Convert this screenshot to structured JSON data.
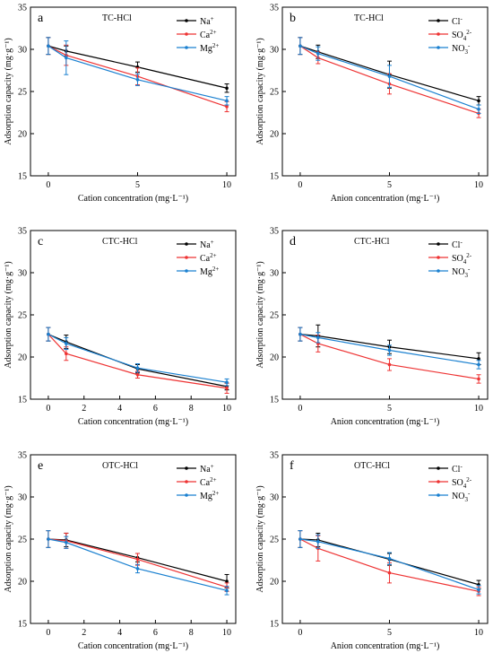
{
  "colors": {
    "black": "#000000",
    "red": "#ee3333",
    "blue": "#1a80d0"
  },
  "chart_data": [
    {
      "type": "line",
      "panel_label": "a",
      "title": "TC-HCl",
      "xlabel": "Cation concentration (mg·L⁻¹)",
      "ylabel": "Adsorption capacity (mg·g⁻¹)",
      "x": [
        0,
        1,
        5,
        10
      ],
      "xticks": [
        0,
        5,
        10
      ],
      "xlim": [
        -1,
        10.5
      ],
      "ylim": [
        15,
        35
      ],
      "yticks": [
        15,
        20,
        25,
        30,
        35
      ],
      "legend_position": "top-right",
      "series": [
        {
          "name": "Na+",
          "color": "#000000",
          "values": [
            30.4,
            29.8,
            27.9,
            25.4
          ],
          "errors": [
            1.0,
            0.6,
            0.6,
            0.5
          ]
        },
        {
          "name": "Ca2+",
          "color": "#ee3333",
          "values": [
            30.4,
            29.3,
            26.8,
            23.2
          ],
          "errors": [
            1.0,
            1.2,
            1.0,
            0.6
          ]
        },
        {
          "name": "Mg2+",
          "color": "#1a80d0",
          "values": [
            30.4,
            29.0,
            26.4,
            23.9
          ],
          "errors": [
            1.0,
            2.0,
            0.7,
            0.5
          ]
        }
      ]
    },
    {
      "type": "line",
      "panel_label": "b",
      "title": "TC-HCl",
      "xlabel": "Anion concentration (mg·L⁻¹)",
      "ylabel": "Adsorption capacity (mg·g⁻¹)",
      "x": [
        0,
        1,
        5,
        10
      ],
      "xticks": [
        0,
        5,
        10
      ],
      "xlim": [
        -1,
        10.5
      ],
      "ylim": [
        15,
        35
      ],
      "yticks": [
        15,
        20,
        25,
        30,
        35
      ],
      "legend_position": "top-right",
      "series": [
        {
          "name": "Cl-",
          "color": "#000000",
          "values": [
            30.4,
            29.7,
            27.0,
            23.9
          ],
          "errors": [
            1.0,
            0.8,
            1.6,
            0.5
          ]
        },
        {
          "name": "SO42-",
          "color": "#ee3333",
          "values": [
            30.4,
            29.0,
            25.9,
            22.4
          ],
          "errors": [
            1.0,
            0.7,
            1.2,
            0.5
          ]
        },
        {
          "name": "NO3-",
          "color": "#1a80d0",
          "values": [
            30.4,
            29.5,
            26.8,
            22.9
          ],
          "errors": [
            1.0,
            0.8,
            1.3,
            0.5
          ]
        }
      ]
    },
    {
      "type": "line",
      "panel_label": "c",
      "title": "CTC-HCl",
      "xlabel": "Cation concentration (mg·L⁻¹)",
      "ylabel": "Adsorption capacity (mg·g⁻¹)",
      "x": [
        0,
        1,
        5,
        10
      ],
      "xticks": [
        0,
        2,
        4,
        6,
        8,
        10
      ],
      "xlim": [
        -1,
        10.5
      ],
      "ylim": [
        15,
        35
      ],
      "yticks": [
        15,
        20,
        25,
        30,
        35
      ],
      "legend_position": "top-right",
      "series": [
        {
          "name": "Na+",
          "color": "#000000",
          "values": [
            22.7,
            21.8,
            18.6,
            16.5
          ],
          "errors": [
            0.8,
            0.8,
            0.5,
            0.4
          ]
        },
        {
          "name": "Ca2+",
          "color": "#ee3333",
          "values": [
            22.7,
            20.4,
            17.9,
            16.3
          ],
          "errors": [
            0.8,
            0.8,
            0.4,
            0.6
          ]
        },
        {
          "name": "Mg2+",
          "color": "#1a80d0",
          "values": [
            22.7,
            21.6,
            18.7,
            17.0
          ],
          "errors": [
            0.8,
            0.7,
            0.5,
            0.4
          ]
        }
      ]
    },
    {
      "type": "line",
      "panel_label": "d",
      "title": "CTC-HCl",
      "xlabel": "Anion concentration (mg·L⁻¹)",
      "ylabel": "Adsorption capacity (mg·g⁻¹)",
      "x": [
        0,
        1,
        5,
        10
      ],
      "xticks": [
        0,
        5,
        10
      ],
      "xlim": [
        -1,
        10.5
      ],
      "ylim": [
        15,
        35
      ],
      "yticks": [
        15,
        20,
        25,
        30,
        35
      ],
      "legend_position": "top-right",
      "series": [
        {
          "name": "Cl-",
          "color": "#000000",
          "values": [
            22.7,
            22.5,
            21.2,
            19.8
          ],
          "errors": [
            0.8,
            1.3,
            0.8,
            0.7
          ]
        },
        {
          "name": "SO42-",
          "color": "#ee3333",
          "values": [
            22.7,
            21.6,
            19.1,
            17.4
          ],
          "errors": [
            0.8,
            1.0,
            0.7,
            0.5
          ]
        },
        {
          "name": "NO3-",
          "color": "#1a80d0",
          "values": [
            22.7,
            22.3,
            20.8,
            19.1
          ],
          "errors": [
            0.8,
            0.6,
            0.6,
            0.5
          ]
        }
      ]
    },
    {
      "type": "line",
      "panel_label": "e",
      "title": "OTC-HCl",
      "xlabel": "Cation concentration (mg·L⁻¹)",
      "ylabel": "Adsorption capacity (mg·g⁻¹)",
      "x": [
        0,
        1,
        5,
        10
      ],
      "xticks": [
        0,
        2,
        4,
        6,
        8,
        10
      ],
      "xlim": [
        -1,
        10.5
      ],
      "ylim": [
        15,
        35
      ],
      "yticks": [
        15,
        20,
        25,
        30,
        35
      ],
      "legend_position": "top-right",
      "series": [
        {
          "name": "Na+",
          "color": "#000000",
          "values": [
            25.0,
            24.9,
            22.8,
            20.0
          ],
          "errors": [
            1.0,
            0.8,
            0.5,
            0.8
          ]
        },
        {
          "name": "Ca2+",
          "color": "#ee3333",
          "values": [
            25.0,
            24.8,
            22.6,
            19.3
          ],
          "errors": [
            1.0,
            0.9,
            0.7,
            0.5
          ]
        },
        {
          "name": "Mg2+",
          "color": "#1a80d0",
          "values": [
            25.0,
            24.6,
            21.5,
            18.9
          ],
          "errors": [
            1.0,
            0.7,
            0.5,
            0.5
          ]
        }
      ]
    },
    {
      "type": "line",
      "panel_label": "f",
      "title": "OTC-HCl",
      "xlabel": "Anion concentration (mg·L⁻¹)",
      "ylabel": "Adsorption capacity (mg·g⁻¹)",
      "x": [
        0,
        1,
        5,
        10
      ],
      "xticks": [
        0,
        5,
        10
      ],
      "xlim": [
        -1,
        10.5
      ],
      "ylim": [
        15,
        35
      ],
      "yticks": [
        15,
        20,
        25,
        30,
        35
      ],
      "legend_position": "top-right",
      "series": [
        {
          "name": "Cl-",
          "color": "#000000",
          "values": [
            25.0,
            24.9,
            22.6,
            19.6
          ],
          "errors": [
            1.0,
            0.8,
            0.7,
            0.5
          ]
        },
        {
          "name": "SO42-",
          "color": "#ee3333",
          "values": [
            25.0,
            23.9,
            21.0,
            18.8
          ],
          "errors": [
            1.0,
            1.5,
            1.2,
            0.5
          ]
        },
        {
          "name": "NO3-",
          "color": "#1a80d0",
          "values": [
            25.0,
            24.7,
            22.7,
            19.0
          ],
          "errors": [
            1.0,
            0.8,
            0.7,
            0.5
          ]
        }
      ]
    }
  ]
}
